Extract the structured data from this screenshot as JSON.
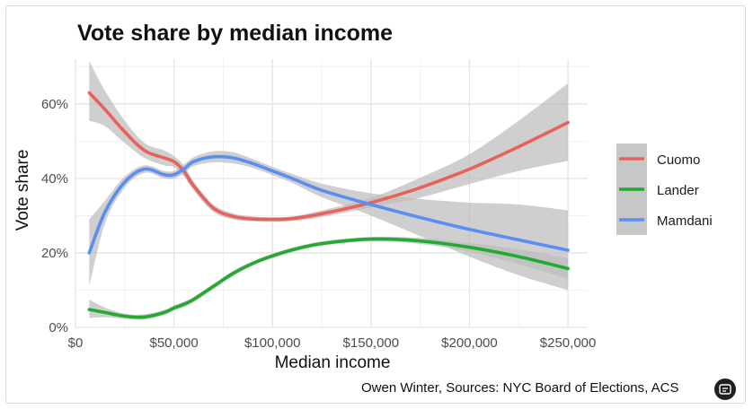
{
  "chart_data": {
    "type": "line",
    "title": "Vote share by median income",
    "xlabel": "Median income",
    "ylabel": "Vote share",
    "caption": "Owen Winter, Sources: NYC Board of Elections, ACS",
    "xlim": [
      0,
      260000
    ],
    "ylim": [
      0,
      0.72
    ],
    "x_ticks": [
      {
        "value": 0,
        "label": "$0"
      },
      {
        "value": 50000,
        "label": "$50,000"
      },
      {
        "value": 100000,
        "label": "$100,000"
      },
      {
        "value": 150000,
        "label": "$150,000"
      },
      {
        "value": 200000,
        "label": "$200,000"
      },
      {
        "value": 250000,
        "label": "$250,000"
      }
    ],
    "y_ticks": [
      {
        "value": 0,
        "label": "0%"
      },
      {
        "value": 0.2,
        "label": "20%"
      },
      {
        "value": 0.4,
        "label": "40%"
      },
      {
        "value": 0.6,
        "label": "60%"
      }
    ],
    "grid": true,
    "legend_position": "right",
    "x": [
      7000,
      15000,
      25000,
      35000,
      45000,
      50000,
      55000,
      60000,
      70000,
      80000,
      90000,
      100000,
      110000,
      125000,
      150000,
      175000,
      200000,
      225000,
      250000
    ],
    "series": [
      {
        "name": "Cuomo",
        "color": "#E8625B",
        "values": [
          0.63,
          0.585,
          0.525,
          0.475,
          0.455,
          0.445,
          0.42,
          0.38,
          0.32,
          0.298,
          0.291,
          0.29,
          0.292,
          0.305,
          0.335,
          0.375,
          0.425,
          0.485,
          0.55
        ],
        "ci_low": [
          0.555,
          0.54,
          0.495,
          0.455,
          0.435,
          0.43,
          0.405,
          0.368,
          0.31,
          0.29,
          0.285,
          0.284,
          0.286,
          0.296,
          0.322,
          0.348,
          0.385,
          0.42,
          0.447
        ],
        "ci_high": [
          0.715,
          0.635,
          0.555,
          0.495,
          0.475,
          0.46,
          0.435,
          0.392,
          0.33,
          0.306,
          0.298,
          0.296,
          0.298,
          0.314,
          0.348,
          0.402,
          0.465,
          0.555,
          0.655
        ]
      },
      {
        "name": "Lander",
        "color": "#22AA33",
        "values": [
          0.048,
          0.04,
          0.03,
          0.028,
          0.04,
          0.052,
          0.062,
          0.075,
          0.11,
          0.145,
          0.172,
          0.192,
          0.208,
          0.225,
          0.237,
          0.232,
          0.215,
          0.19,
          0.158
        ],
        "ci_low": [
          0.025,
          0.027,
          0.023,
          0.021,
          0.033,
          0.045,
          0.055,
          0.068,
          0.103,
          0.138,
          0.166,
          0.186,
          0.202,
          0.219,
          0.231,
          0.224,
          0.203,
          0.17,
          0.13
        ],
        "ci_high": [
          0.075,
          0.053,
          0.037,
          0.035,
          0.047,
          0.059,
          0.069,
          0.082,
          0.117,
          0.152,
          0.178,
          0.198,
          0.214,
          0.231,
          0.243,
          0.24,
          0.227,
          0.21,
          0.186
        ]
      },
      {
        "name": "Mamdani",
        "color": "#5B8EF2",
        "values": [
          0.2,
          0.31,
          0.39,
          0.425,
          0.41,
          0.41,
          0.425,
          0.445,
          0.458,
          0.455,
          0.44,
          0.42,
          0.4,
          0.368,
          0.33,
          0.295,
          0.263,
          0.235,
          0.207
        ],
        "ci_low": [
          0.11,
          0.28,
          0.375,
          0.415,
          0.4,
          0.4,
          0.413,
          0.433,
          0.443,
          0.44,
          0.428,
          0.409,
          0.388,
          0.35,
          0.3,
          0.245,
          0.19,
          0.14,
          0.1
        ],
        "ci_high": [
          0.29,
          0.34,
          0.405,
          0.435,
          0.42,
          0.42,
          0.437,
          0.457,
          0.473,
          0.47,
          0.452,
          0.431,
          0.412,
          0.386,
          0.36,
          0.345,
          0.335,
          0.33,
          0.314
        ]
      }
    ],
    "ribbon_color": "#bdbdbd"
  }
}
